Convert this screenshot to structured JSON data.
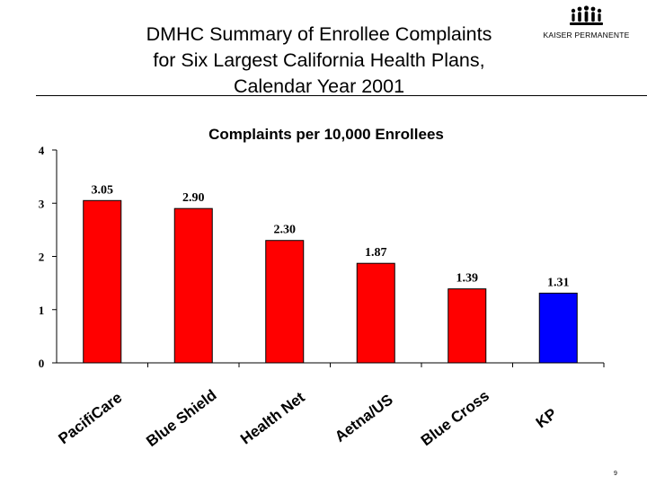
{
  "slide": {
    "title_lines": [
      "DMHC Summary of Enrollee Complaints",
      "for Six Largest California Health Plans,",
      "Calendar Year 2001"
    ],
    "logo_text": "KAISER PERMANENTE",
    "page_number": "9"
  },
  "chart_data": {
    "type": "bar",
    "title": "Complaints per 10,000 Enrollees",
    "categories": [
      "PacifiCare",
      "Blue Shield",
      "Health Net",
      "Aetna/US",
      "Blue Cross",
      "KP"
    ],
    "values": [
      3.05,
      2.9,
      2.3,
      1.87,
      1.39,
      1.31
    ],
    "data_labels": [
      "3.05",
      "2.90",
      "2.30",
      "1.87",
      "1.39",
      "1.31"
    ],
    "y_ticks": [
      "0",
      "1",
      "2",
      "3",
      "4"
    ],
    "ylim": [
      0,
      4
    ],
    "xlabel": "",
    "ylabel": "",
    "grid": false,
    "bar_colors": [
      "#ff0000",
      "#ff0000",
      "#ff0000",
      "#ff0000",
      "#ff0000",
      "#0000ff"
    ]
  }
}
